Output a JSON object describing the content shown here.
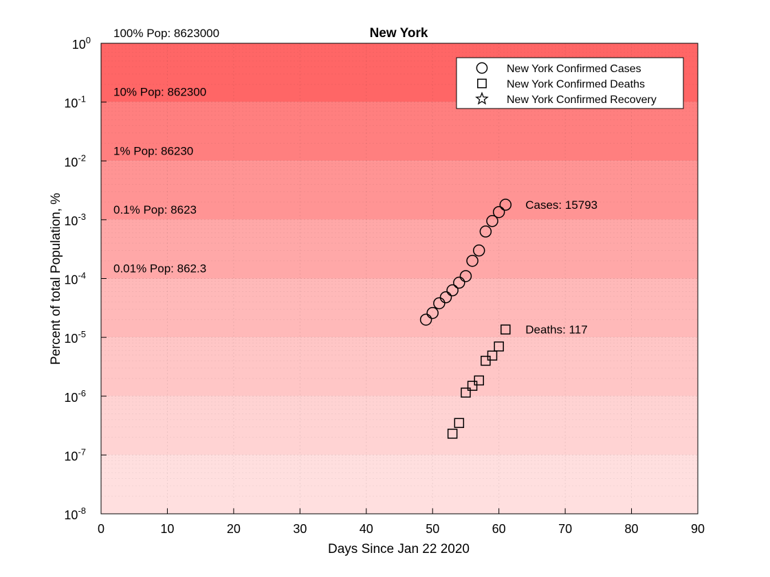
{
  "chart_data": {
    "type": "scatter",
    "title": "New York",
    "xlabel": "Days Since Jan 22 2020",
    "ylabel": "Percent of total Population, %",
    "xlim": [
      0,
      90
    ],
    "ylim": [
      1e-08,
      1
    ],
    "yscale": "log",
    "grid": true,
    "legend_position": "top-right",
    "x_ticks": [
      0,
      10,
      20,
      30,
      40,
      50,
      60,
      70,
      80,
      90
    ],
    "y_ticks": [
      {
        "value": 1e-08,
        "exp": "-8"
      },
      {
        "value": 1e-07,
        "exp": "-7"
      },
      {
        "value": 1e-06,
        "exp": "-6"
      },
      {
        "value": 1e-05,
        "exp": "-5"
      },
      {
        "value": 0.0001,
        "exp": "-4"
      },
      {
        "value": 0.001,
        "exp": "-3"
      },
      {
        "value": 0.01,
        "exp": "-2"
      },
      {
        "value": 0.1,
        "exp": "-1"
      },
      {
        "value": 1,
        "exp": "0"
      }
    ],
    "y_tick_base": "10",
    "bands": [
      {
        "lower": 0.1,
        "upper": 1,
        "color": "#ff6666",
        "label": "100% Pop: 8623000",
        "label_value": 1
      },
      {
        "lower": 0.01,
        "upper": 0.1,
        "color": "#ff7f7f",
        "label": "10% Pop: 862300",
        "label_value": 0.1
      },
      {
        "lower": 0.001,
        "upper": 0.01,
        "color": "#ff9494",
        "label": "1% Pop: 86230",
        "label_value": 0.01
      },
      {
        "lower": 0.0001,
        "upper": 0.001,
        "color": "#ffa8a8",
        "label": "0.1% Pop: 8623",
        "label_value": 0.001
      },
      {
        "lower": 1e-05,
        "upper": 0.0001,
        "color": "#ffb9b9",
        "label": "0.01% Pop: 862.3",
        "label_value": 0.0001
      },
      {
        "lower": 1e-06,
        "upper": 1e-05,
        "color": "#ffc6c6",
        "label": "",
        "label_value": 1e-05
      },
      {
        "lower": 1e-07,
        "upper": 1e-06,
        "color": "#ffd3d3",
        "label": "",
        "label_value": 1e-06
      },
      {
        "lower": 1e-08,
        "upper": 1e-07,
        "color": "#ffdfdf",
        "label": "",
        "label_value": 1e-07
      }
    ],
    "series": [
      {
        "name": "New York Confirmed Cases",
        "marker": "circle",
        "x": [
          49,
          50,
          51,
          52,
          53,
          54,
          55,
          56,
          57,
          58,
          59,
          60,
          61
        ],
        "y": [
          2e-05,
          2.6e-05,
          3.8e-05,
          4.8e-05,
          6.3e-05,
          8.5e-05,
          0.00011,
          0.0002,
          0.0003,
          0.00063,
          0.00095,
          0.00135,
          0.0018
        ]
      },
      {
        "name": "New York Confirmed Deaths",
        "marker": "square",
        "x": [
          53,
          54,
          55,
          56,
          57,
          58,
          59,
          60,
          61
        ],
        "y": [
          2.3e-07,
          3.5e-07,
          1.15e-06,
          1.5e-06,
          1.85e-06,
          4e-06,
          4.9e-06,
          7e-06,
          1.36e-05
        ]
      },
      {
        "name": "New York Confirmed Recovery",
        "marker": "star",
        "x": [],
        "y": []
      }
    ],
    "annotations": [
      {
        "text": "Cases: 15793",
        "x": 64,
        "y": 0.0018
      },
      {
        "text": "Deaths: 117",
        "x": 64,
        "y": 1.36e-05
      }
    ]
  }
}
